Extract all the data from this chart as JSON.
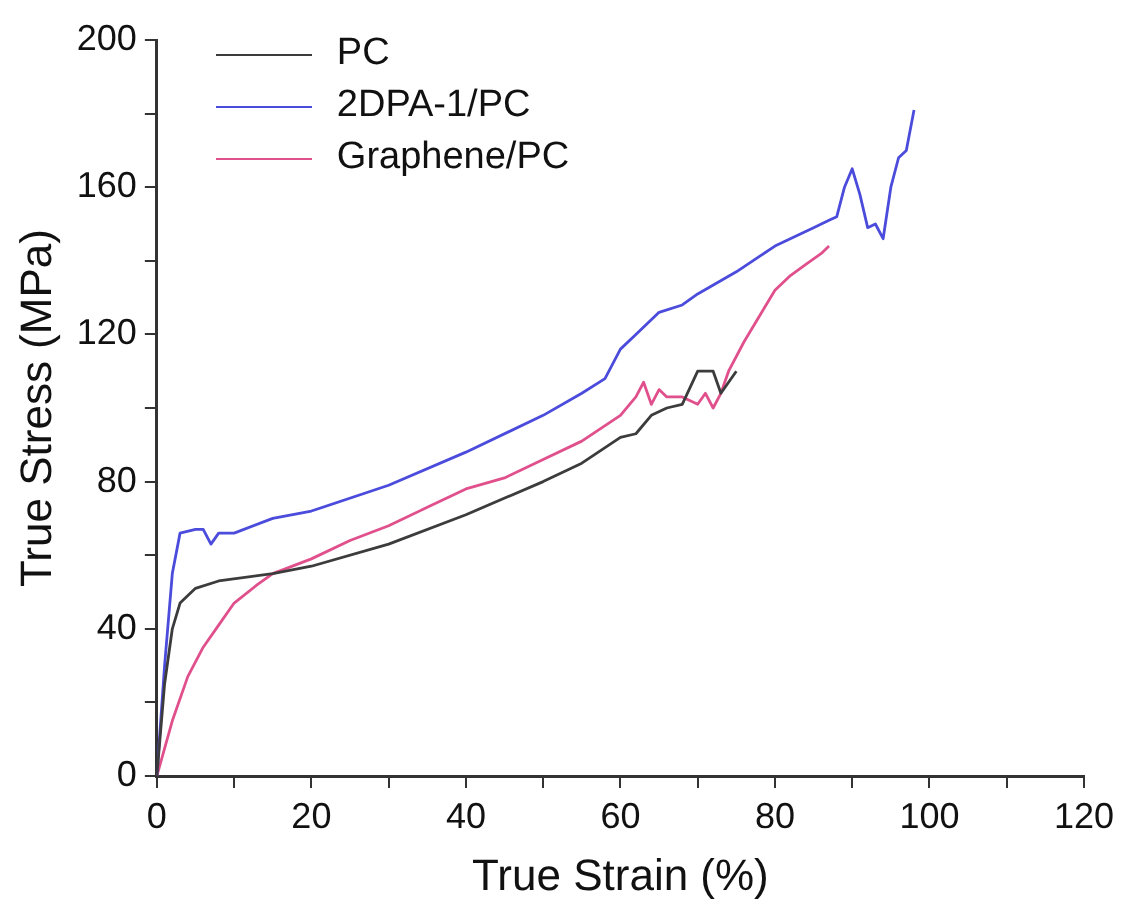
{
  "chart_data": {
    "type": "line",
    "xlabel": "True Strain (%)",
    "ylabel": "True Stress (MPa)",
    "xlim": [
      0,
      120
    ],
    "ylim": [
      0,
      200
    ],
    "xticks": [
      0,
      {
        "value": 10,
        "label": null
      },
      20,
      {
        "value": 30,
        "label": null
      },
      40,
      {
        "value": 50,
        "label": null
      },
      60,
      {
        "value": 70,
        "label": null
      },
      80,
      {
        "value": 90,
        "label": null
      },
      100,
      {
        "value": 110,
        "label": null
      },
      120
    ],
    "yticks": [
      0,
      {
        "value": 20,
        "label": null
      },
      40,
      {
        "value": 60,
        "label": null
      },
      80,
      {
        "value": 100,
        "label": null
      },
      120,
      {
        "value": 140,
        "label": null
      },
      160,
      {
        "value": 180,
        "label": null
      },
      200
    ],
    "grid": false,
    "legend": "top left",
    "marker": "none",
    "line_style": "solid",
    "series": [
      {
        "name": "PC",
        "color": "#3c3c3c",
        "x": [
          0,
          1,
          2,
          3,
          5,
          8,
          15,
          20,
          30,
          40,
          50,
          55,
          60,
          62,
          64,
          66,
          68,
          70,
          72,
          73,
          75
        ],
        "values": [
          0,
          25,
          40,
          47,
          51,
          53,
          55,
          57,
          63,
          71,
          80,
          85,
          92,
          93,
          98,
          100,
          101,
          110,
          110,
          104,
          110
        ]
      },
      {
        "name": "2DPA-1/PC",
        "color": "#4b4bdc",
        "x": [
          0,
          1,
          2,
          3,
          5,
          6,
          7,
          8,
          10,
          15,
          20,
          30,
          40,
          50,
          55,
          58,
          60,
          62,
          65,
          68,
          70,
          75,
          80,
          85,
          87,
          88,
          89,
          90,
          91,
          92,
          93,
          94,
          95,
          96,
          97,
          98
        ],
        "values": [
          0,
          30,
          55,
          66,
          67,
          67,
          63,
          66,
          66,
          70,
          72,
          79,
          88,
          98,
          104,
          108,
          116,
          120,
          126,
          128,
          131,
          137,
          144,
          149,
          151,
          152,
          160,
          165,
          158,
          149,
          150,
          146,
          160,
          168,
          170,
          181
        ]
      },
      {
        "name": "Graphene/PC",
        "color": "#e0508c",
        "x": [
          0,
          2,
          4,
          6,
          8,
          10,
          13,
          15,
          20,
          25,
          30,
          35,
          40,
          45,
          50,
          55,
          60,
          62,
          63,
          64,
          65,
          66,
          68,
          70,
          71,
          72,
          73,
          74,
          76,
          78,
          80,
          82,
          84,
          86,
          87
        ],
        "values": [
          0,
          15,
          27,
          35,
          41,
          47,
          52,
          55,
          59,
          64,
          68,
          73,
          78,
          81,
          86,
          91,
          98,
          103,
          107,
          101,
          105,
          103,
          103,
          101,
          104,
          100,
          104,
          110,
          118,
          125,
          132,
          136,
          139,
          142,
          144
        ]
      }
    ]
  }
}
